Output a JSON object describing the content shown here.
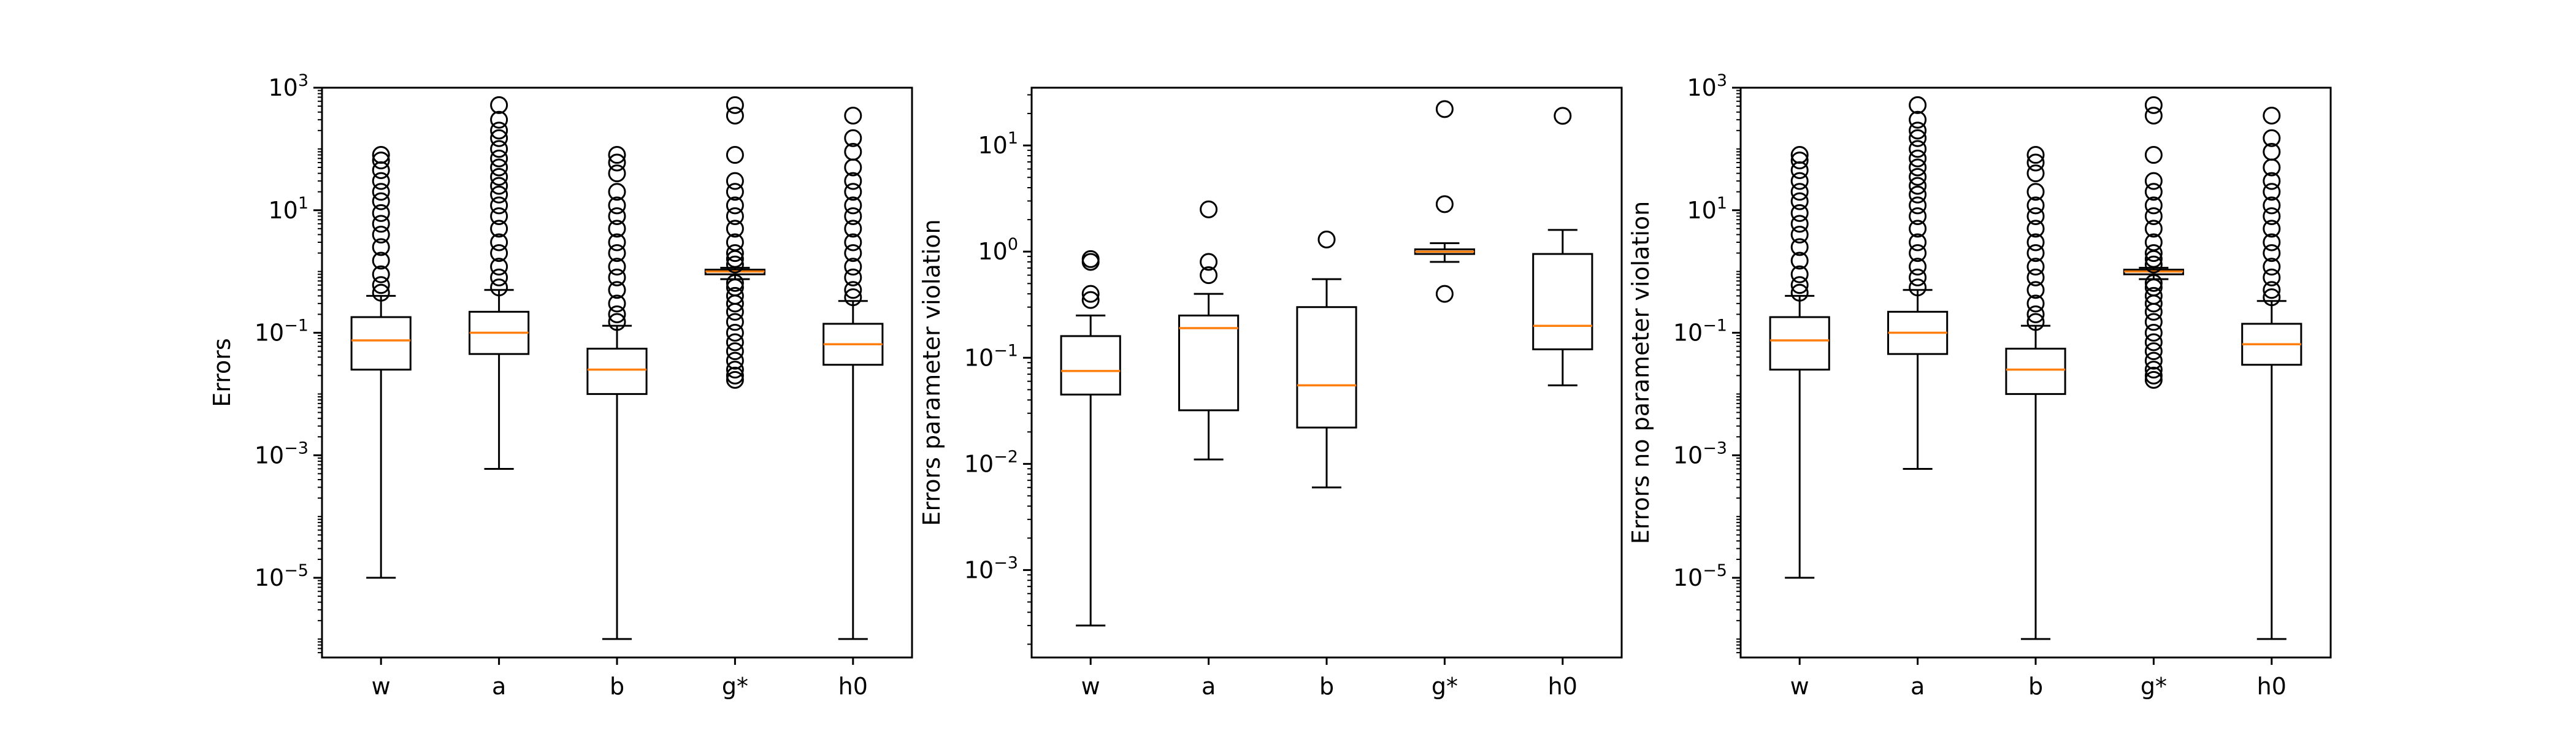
{
  "chart_data": [
    {
      "type": "boxplot",
      "ylabel": "Errors",
      "yscale": "log",
      "ylim": [
        5e-07,
        1000
      ],
      "yticks": [
        {
          "value": 1e-05,
          "base": "10",
          "exp": "−5"
        },
        {
          "value": 0.001,
          "base": "10",
          "exp": "−3"
        },
        {
          "value": 0.1,
          "base": "10",
          "exp": "−1"
        },
        {
          "value": 10,
          "base": "10",
          "exp": "1"
        },
        {
          "value": 1000,
          "base": "10",
          "exp": "3"
        }
      ],
      "categories": [
        "w",
        "a",
        "b",
        "g*",
        "h0"
      ],
      "boxes": [
        {
          "min": 1e-05,
          "q1": 0.025,
          "median": 0.075,
          "q3": 0.18,
          "max": 0.4,
          "fliers": [
            0.45,
            0.6,
            0.9,
            1.5,
            2.5,
            4,
            6,
            9,
            14,
            20,
            30,
            45,
            65,
            80
          ]
        },
        {
          "min": 0.0006,
          "q1": 0.045,
          "median": 0.1,
          "q3": 0.22,
          "max": 0.5,
          "fliers": [
            0.55,
            0.8,
            1.2,
            2,
            3,
            5,
            8,
            12,
            18,
            25,
            35,
            50,
            70,
            100,
            150,
            200,
            300,
            520
          ]
        },
        {
          "min": 1e-06,
          "q1": 0.01,
          "median": 0.025,
          "q3": 0.055,
          "max": 0.13,
          "fliers": [
            0.15,
            0.2,
            0.3,
            0.5,
            0.8,
            1.2,
            2,
            3,
            5,
            8,
            12,
            20,
            40,
            60,
            80
          ]
        },
        {
          "min": 0.75,
          "q1": 0.9,
          "median": 1.0,
          "q3": 1.07,
          "max": 1.15,
          "fliers": [
            0.017,
            0.02,
            0.025,
            0.035,
            0.05,
            0.07,
            0.1,
            0.15,
            0.22,
            0.3,
            0.4,
            0.55,
            0.65,
            1.3,
            1.6,
            2,
            3,
            5,
            8,
            12,
            20,
            30,
            80,
            350,
            520
          ]
        },
        {
          "min": 1e-06,
          "q1": 0.03,
          "median": 0.065,
          "q3": 0.14,
          "max": 0.33,
          "fliers": [
            0.38,
            0.5,
            0.8,
            1.2,
            2,
            3,
            5,
            8,
            12,
            20,
            30,
            50,
            90,
            150,
            350
          ]
        }
      ]
    },
    {
      "type": "boxplot",
      "ylabel": "Errors parameter violation",
      "yscale": "log",
      "ylim": [
        0.00015,
        35
      ],
      "yticks": [
        {
          "value": 0.001,
          "base": "10",
          "exp": "−3"
        },
        {
          "value": 0.01,
          "base": "10",
          "exp": "−2"
        },
        {
          "value": 0.1,
          "base": "10",
          "exp": "−1"
        },
        {
          "value": 1,
          "base": "10",
          "exp": "0"
        },
        {
          "value": 10,
          "base": "10",
          "exp": "1"
        }
      ],
      "categories": [
        "w",
        "a",
        "b",
        "g*",
        "h0"
      ],
      "boxes": [
        {
          "min": 0.0003,
          "q1": 0.045,
          "median": 0.075,
          "q3": 0.16,
          "max": 0.25,
          "fliers": [
            0.35,
            0.4,
            0.8,
            0.85
          ]
        },
        {
          "min": 0.011,
          "q1": 0.032,
          "median": 0.19,
          "q3": 0.25,
          "max": 0.4,
          "fliers": [
            0.6,
            0.8,
            2.5
          ]
        },
        {
          "min": 0.006,
          "q1": 0.022,
          "median": 0.055,
          "q3": 0.3,
          "max": 0.55,
          "fliers": [
            1.3
          ]
        },
        {
          "min": 0.8,
          "q1": 0.95,
          "median": 1.0,
          "q3": 1.05,
          "max": 1.2,
          "fliers": [
            0.4,
            2.8,
            22
          ]
        },
        {
          "min": 0.055,
          "q1": 0.12,
          "median": 0.2,
          "q3": 0.95,
          "max": 1.6,
          "fliers": [
            19
          ]
        }
      ]
    },
    {
      "type": "boxplot",
      "ylabel": "Errors no parameter violation",
      "yscale": "log",
      "ylim": [
        5e-07,
        1000
      ],
      "yticks": [
        {
          "value": 1e-05,
          "base": "10",
          "exp": "−5"
        },
        {
          "value": 0.001,
          "base": "10",
          "exp": "−3"
        },
        {
          "value": 0.1,
          "base": "10",
          "exp": "−1"
        },
        {
          "value": 10,
          "base": "10",
          "exp": "1"
        },
        {
          "value": 1000,
          "base": "10",
          "exp": "3"
        }
      ],
      "categories": [
        "w",
        "a",
        "b",
        "g*",
        "h0"
      ],
      "boxes": [
        {
          "min": 1e-05,
          "q1": 0.025,
          "median": 0.075,
          "q3": 0.18,
          "max": 0.4,
          "fliers": [
            0.45,
            0.6,
            0.9,
            1.5,
            2.5,
            4,
            6,
            9,
            14,
            20,
            30,
            45,
            65,
            80
          ]
        },
        {
          "min": 0.0006,
          "q1": 0.045,
          "median": 0.1,
          "q3": 0.22,
          "max": 0.5,
          "fliers": [
            0.55,
            0.8,
            1.2,
            2,
            3,
            5,
            8,
            12,
            18,
            25,
            35,
            50,
            70,
            100,
            150,
            200,
            300,
            520
          ]
        },
        {
          "min": 1e-06,
          "q1": 0.01,
          "median": 0.025,
          "q3": 0.055,
          "max": 0.13,
          "fliers": [
            0.15,
            0.2,
            0.3,
            0.5,
            0.8,
            1.2,
            2,
            3,
            5,
            8,
            12,
            20,
            40,
            60,
            80
          ]
        },
        {
          "min": 0.75,
          "q1": 0.9,
          "median": 1.0,
          "q3": 1.07,
          "max": 1.15,
          "fliers": [
            0.017,
            0.02,
            0.025,
            0.035,
            0.05,
            0.07,
            0.1,
            0.15,
            0.22,
            0.3,
            0.4,
            0.55,
            0.65,
            1.3,
            1.6,
            2,
            3,
            5,
            8,
            12,
            20,
            30,
            80,
            350,
            520
          ]
        },
        {
          "min": 1e-06,
          "q1": 0.03,
          "median": 0.065,
          "q3": 0.14,
          "max": 0.33,
          "fliers": [
            0.38,
            0.5,
            0.8,
            1.2,
            2,
            3,
            5,
            8,
            12,
            20,
            30,
            50,
            90,
            150,
            350
          ]
        }
      ]
    }
  ],
  "colors": {
    "median": "#ff7f0e",
    "box": "#000000",
    "background": "#ffffff"
  }
}
